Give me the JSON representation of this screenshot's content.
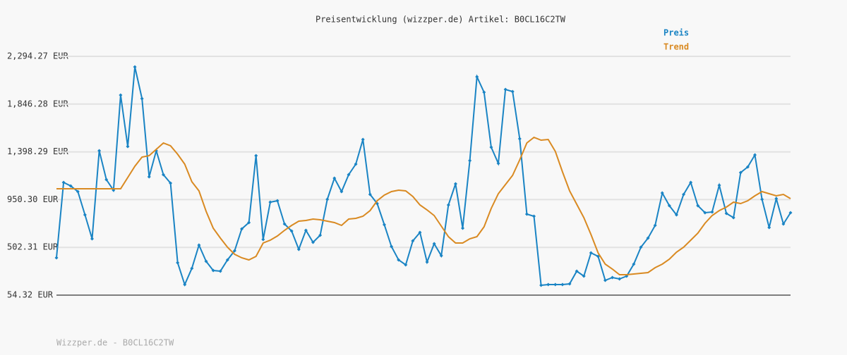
{
  "chart_data": {
    "type": "line",
    "title": "Preisentwicklung (wizzper.de) Artikel: B0CL16C2TW",
    "footer": "Wizzper.de - B0CL16C2TW",
    "legend": "top-right",
    "grid": true,
    "ylim": [
      54.32,
      2294.27
    ],
    "yticks": [
      {
        "value": 54.32,
        "label": "54.32 EUR"
      },
      {
        "value": 502.31,
        "label": "502.31 EUR"
      },
      {
        "value": 950.3,
        "label": "950.30 EUR"
      },
      {
        "value": 1398.29,
        "label": "1,398.29 EUR"
      },
      {
        "value": 1846.28,
        "label": "1,846.28 EUR"
      },
      {
        "value": 2294.27,
        "label": "2,294.27 EUR"
      }
    ],
    "series": [
      {
        "name": "Preis",
        "color": "#1a84c4",
        "markers": true,
        "values": [
          404.5,
          1111.5,
          1078.5,
          1025.6,
          807.6,
          582.9,
          1408.9,
          1137.9,
          1038.8,
          1930.8,
          1448.5,
          2195.1,
          1897.8,
          1164.4,
          1408.9,
          1184.2,
          1104.9,
          358.3,
          153.4,
          305.4,
          523.5,
          371.5,
          285.6,
          279,
          384.7,
          470.6,
          675.4,
          734.9,
          1362.6,
          576.3,
          926.5,
          939.7,
          721.7,
          655.6,
          483.8,
          662.2,
          549.9,
          615.9,
          952.9,
          1151.1,
          1025.6,
          1184.2,
          1283.3,
          1514.6,
          999.2,
          913.3,
          715.1,
          510.2,
          384.7,
          338.4,
          563.1,
          642.4,
          364.9,
          536.6,
          424.3,
          900.1,
          1098.3,
          682,
          1316.3,
          2102.6,
          1957.3,
          1441.9,
          1289.9,
          1983.7,
          1963.9,
          1521.2,
          814.2,
          794.3,
          146.8,
          153.4,
          153.4,
          153.4,
          160,
          279,
          232.7,
          450.8,
          417.7,
          193.1,
          219.5,
          206.3,
          232.7,
          345,
          503.6,
          589.5,
          708.4,
          1012.4,
          893.5,
          807.6,
          999.2,
          1111.5,
          893.5,
          827.4,
          834,
          1085.1,
          820.8,
          781.1,
          1204,
          1256.9,
          1369.2,
          952.9,
          688.6,
          959.5,
          721.7,
          827.4
        ]
      },
      {
        "name": "Trend",
        "color": "#d98a22",
        "markers": false,
        "values": [
          1052,
          1052,
          1052,
          1052,
          1052,
          1052,
          1052,
          1052,
          1052,
          1052,
          1157.8,
          1263.5,
          1349.4,
          1362.6,
          1422.1,
          1481.5,
          1455.1,
          1375.8,
          1283.3,
          1118.1,
          1032.2,
          840.6,
          682,
          589.5,
          503.6,
          437.5,
          404.5,
          384.7,
          417.7,
          543.3,
          569.7,
          609.3,
          662.2,
          708.4,
          748.1,
          754.7,
          767.9,
          761.3,
          748.1,
          734.9,
          708.4,
          767.9,
          774.5,
          794.3,
          847.2,
          939.7,
          992.6,
          1025.6,
          1038.8,
          1032.2,
          979.4,
          900.1,
          853.8,
          800.9,
          701.8,
          602.7,
          543.3,
          543.3,
          582.9,
          602.7,
          695.2,
          867,
          1005.8,
          1091.7,
          1177.6,
          1322.9,
          1481.5,
          1534.4,
          1508,
          1514.6,
          1402.2,
          1210.6,
          1032.2,
          906.7,
          781.1,
          622.5,
          450.8,
          345,
          298.8,
          245.9,
          245.9,
          252.5,
          259.1,
          265.7,
          312,
          345,
          391.3,
          457.4,
          503.6,
          569.7,
          635.8,
          728.3,
          800.9,
          847.2,
          880.2,
          926.5,
          913.3,
          939.7,
          986,
          1025.6,
          1005.8,
          986,
          999.2,
          959.5
        ]
      }
    ]
  }
}
